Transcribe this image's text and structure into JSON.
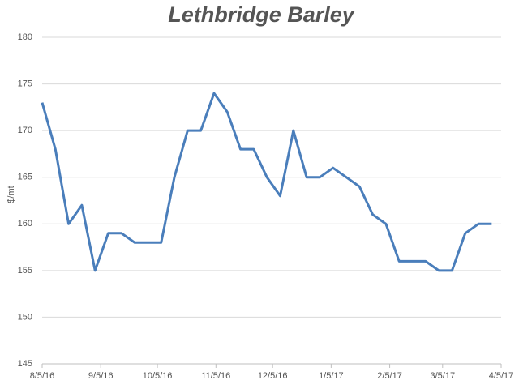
{
  "chart_data": {
    "type": "line",
    "title": "Lethbridge Barley",
    "y_label": "$/mt",
    "x": [
      "8/5/16",
      "8/12/16",
      "8/19/16",
      "8/26/16",
      "9/2/16",
      "9/9/16",
      "9/16/16",
      "9/23/16",
      "9/30/16",
      "10/7/16",
      "10/14/16",
      "10/21/16",
      "10/28/16",
      "11/4/16",
      "11/11/16",
      "11/18/16",
      "11/25/16",
      "12/2/16",
      "12/9/16",
      "12/16/16",
      "12/23/16",
      "12/30/16",
      "1/6/17",
      "1/13/17",
      "1/20/17",
      "1/27/17",
      "2/3/17",
      "2/10/17",
      "2/17/17",
      "2/24/17",
      "3/3/17",
      "3/10/17",
      "3/17/17",
      "3/24/17",
      "3/31/17"
    ],
    "series": [
      {
        "name": "Lethbridge Barley",
        "color": "#4a7ebb",
        "values": [
          173,
          168,
          160,
          162,
          155,
          159,
          159,
          158,
          158,
          158,
          165,
          170,
          170,
          174,
          172,
          168,
          168,
          165,
          163,
          170,
          165,
          165,
          166,
          165,
          164,
          161,
          160,
          156,
          156,
          156,
          155,
          155,
          159,
          160,
          160
        ]
      }
    ],
    "xlim": [
      "8/5/16",
      "4/5/17"
    ],
    "xticks": [
      "8/5/16",
      "9/5/16",
      "10/5/16",
      "11/5/16",
      "12/5/16",
      "1/5/17",
      "2/5/17",
      "3/5/17",
      "4/5/17"
    ],
    "ylim": [
      145,
      180
    ],
    "yticks": [
      145,
      150,
      155,
      160,
      165,
      170,
      175,
      180
    ],
    "grid": true
  }
}
